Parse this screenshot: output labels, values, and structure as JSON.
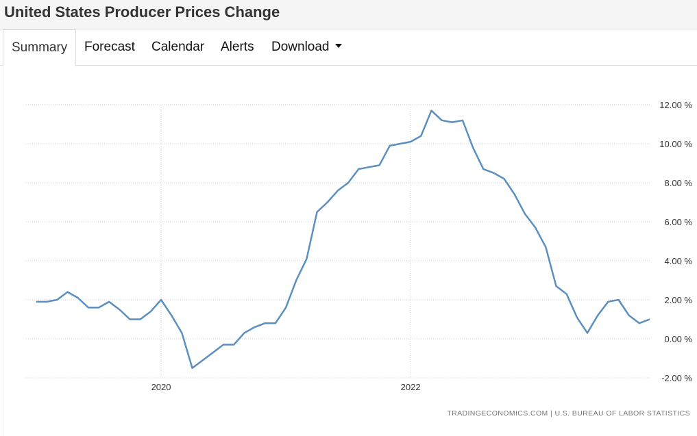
{
  "header": {
    "title": "United States Producer Prices Change"
  },
  "tabs": [
    {
      "label": "Summary"
    },
    {
      "label": "Forecast"
    },
    {
      "label": "Calendar"
    },
    {
      "label": "Alerts"
    },
    {
      "label": "Download"
    }
  ],
  "source": "TRADINGECONOMICS.COM | U.S. BUREAU OF LABOR STATISTICS",
  "colors": {
    "line": "#5b8fbf"
  },
  "chart_data": {
    "type": "line",
    "title": "United States Producer Prices Change",
    "x_start": "2019-01",
    "frequency": "monthly",
    "x_ticks": [
      {
        "label": "2020",
        "index": 12
      },
      {
        "label": "2022",
        "index": 36
      }
    ],
    "y_ticks": [
      "12.00 %",
      "10.00 %",
      "8.00 %",
      "6.00 %",
      "4.00 %",
      "2.00 %",
      "0.00 %",
      "-2.00 %"
    ],
    "ylim": [
      -2,
      12
    ],
    "series": [
      {
        "name": "Producer Prices Change",
        "values": [
          1.9,
          1.9,
          2.0,
          2.4,
          2.1,
          1.6,
          1.6,
          1.9,
          1.5,
          1.0,
          1.0,
          1.4,
          2.0,
          1.2,
          0.3,
          -1.5,
          -1.1,
          -0.7,
          -0.3,
          -0.3,
          0.3,
          0.6,
          0.8,
          0.8,
          1.6,
          3.0,
          4.1,
          6.5,
          7.0,
          7.6,
          8.0,
          8.7,
          8.8,
          8.9,
          9.9,
          10.0,
          10.1,
          10.4,
          11.7,
          11.2,
          11.1,
          11.2,
          9.8,
          8.7,
          8.5,
          8.2,
          7.4,
          6.4,
          5.7,
          4.7,
          2.7,
          2.3,
          1.1,
          0.3,
          1.2,
          1.9,
          2.0,
          1.2,
          0.8,
          1.0
        ]
      }
    ]
  }
}
